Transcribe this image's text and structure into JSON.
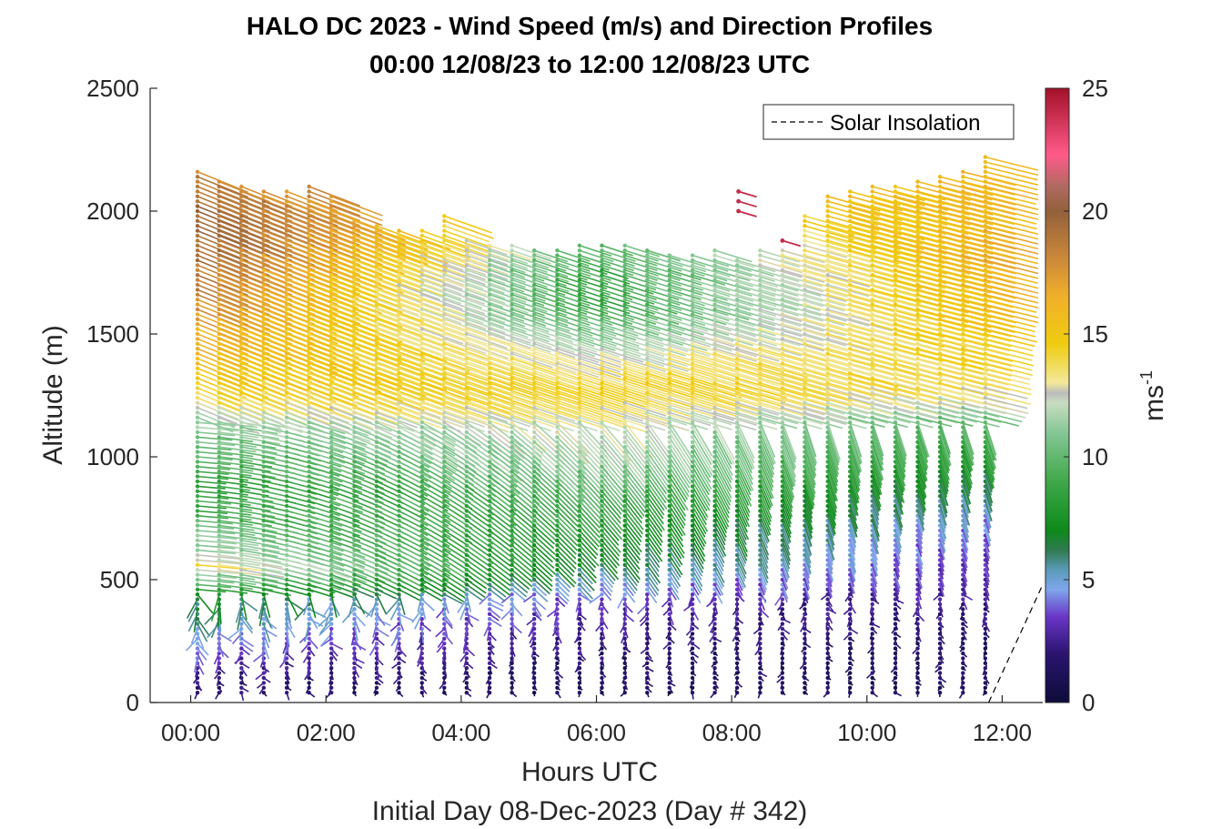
{
  "chart_data": {
    "type": "quiver",
    "title": "HALO DC 2023 - Wind Speed (m/s) and Direction Profiles",
    "subtitle": "00:00 12/08/23 to 12:00 12/08/23  UTC",
    "xlabel": "Hours UTC",
    "ylabel": "Altitude (m)",
    "footer": "Initial Day 08-Dec-2023 (Day # 342)",
    "xlim": [
      -0.6,
      12.6
    ],
    "ylim": [
      0,
      2500
    ],
    "x_ticks": [
      0,
      2,
      4,
      6,
      8,
      10,
      12
    ],
    "x_tick_labels": [
      "00:00",
      "02:00",
      "04:00",
      "06:00",
      "08:00",
      "10:00",
      "12:00"
    ],
    "y_ticks": [
      0,
      500,
      1000,
      1500,
      2000,
      2500
    ],
    "y_tick_labels": [
      "0",
      "500",
      "1000",
      "1500",
      "2000",
      "2500"
    ],
    "legend": {
      "label": "Solar Insolation",
      "position": "top-right",
      "style": "dashed"
    },
    "insolation_line": {
      "x": [
        11.8,
        12.6
      ],
      "y": [
        0,
        480
      ]
    },
    "colorbar": {
      "label": "ms",
      "label_exponent": "-1",
      "range": [
        0,
        25
      ],
      "ticks": [
        0,
        5,
        10,
        15,
        20,
        25
      ],
      "tick_labels": [
        "0",
        "5",
        "10",
        "15",
        "20",
        "25"
      ],
      "colormap": [
        [
          0,
          "#0d0d3a"
        ],
        [
          2,
          "#2b1470"
        ],
        [
          3.5,
          "#6a36c8"
        ],
        [
          4.6,
          "#7fa6ec"
        ],
        [
          5.4,
          "#5a9ab8"
        ],
        [
          6.2,
          "#2f7a50"
        ],
        [
          7,
          "#0d8a1a"
        ],
        [
          9,
          "#3fa84a"
        ],
        [
          11,
          "#86c796"
        ],
        [
          12.2,
          "#c8dcc0"
        ],
        [
          12.6,
          "#bcbcbc"
        ],
        [
          13,
          "#f2e89a"
        ],
        [
          14.6,
          "#f0cc10"
        ],
        [
          16.5,
          "#f0b02a"
        ],
        [
          18,
          "#cd8a3a"
        ],
        [
          20,
          "#93603b"
        ],
        [
          21,
          "#b06a60"
        ],
        [
          22.3,
          "#ff5a8a"
        ],
        [
          25,
          "#a31028"
        ]
      ]
    },
    "profiles_x_hours": [
      0.1,
      0.42,
      0.75,
      1.08,
      1.42,
      1.75,
      2.08,
      2.42,
      2.75,
      3.08,
      3.42,
      3.75,
      4.08,
      4.42,
      4.75,
      5.08,
      5.42,
      5.75,
      6.08,
      6.42,
      6.75,
      7.08,
      7.42,
      7.75,
      8.08,
      8.42,
      8.75,
      9.08,
      9.42,
      9.75,
      10.08,
      10.42,
      10.75,
      11.08,
      11.42,
      11.75
    ],
    "profile_top_m": [
      2170,
      2130,
      2110,
      2090,
      2080,
      2110,
      2070,
      1960,
      1940,
      1930,
      1920,
      1990,
      1880,
      1860,
      1860,
      1850,
      1840,
      1860,
      1860,
      1860,
      1850,
      1830,
      1830,
      1840,
      1810,
      1840,
      1840,
      1980,
      2060,
      2080,
      2100,
      2110,
      2130,
      2140,
      2170,
      2220
    ],
    "speed_profile": {
      "altitude_m": [
        0,
        120,
        250,
        420,
        560,
        650,
        760,
        880,
        1000,
        1150,
        1220,
        1300,
        1450,
        1600,
        1750,
        1850,
        2000,
        2200
      ],
      "early_ms": [
        1.5,
        2.5,
        4.5,
        6.5,
        13.5,
        11,
        9.5,
        8.5,
        9.5,
        11.5,
        13.5,
        14.5,
        16,
        17.5,
        18.5,
        19.5,
        19.5,
        18
      ],
      "mid_ms": [
        1,
        1.5,
        2,
        3.5,
        6.5,
        7.5,
        8.5,
        9.5,
        11.5,
        12.5,
        13.5,
        14.5,
        12,
        9,
        8.5,
        9.5,
        13,
        16
      ],
      "late_ms": [
        1,
        1.5,
        1.5,
        2.5,
        3,
        3.5,
        4.5,
        6,
        7.5,
        10,
        12,
        13.5,
        14.5,
        15.5,
        16.5,
        16.5,
        16,
        16
      ]
    },
    "direction": {
      "upper_heading_deg": -22,
      "upper_late_heading_deg": -14,
      "mid_heading_early_deg": -5,
      "mid_heading_late_deg": -72,
      "lower_heading_deg": -85
    },
    "isolated_high_speed_vectors": [
      {
        "x": 8.1,
        "y": 2080,
        "speed": 24
      },
      {
        "x": 8.1,
        "y": 2040,
        "speed": 24
      },
      {
        "x": 8.1,
        "y": 2000,
        "speed": 24
      },
      {
        "x": 8.75,
        "y": 1880,
        "speed": 24
      }
    ]
  }
}
